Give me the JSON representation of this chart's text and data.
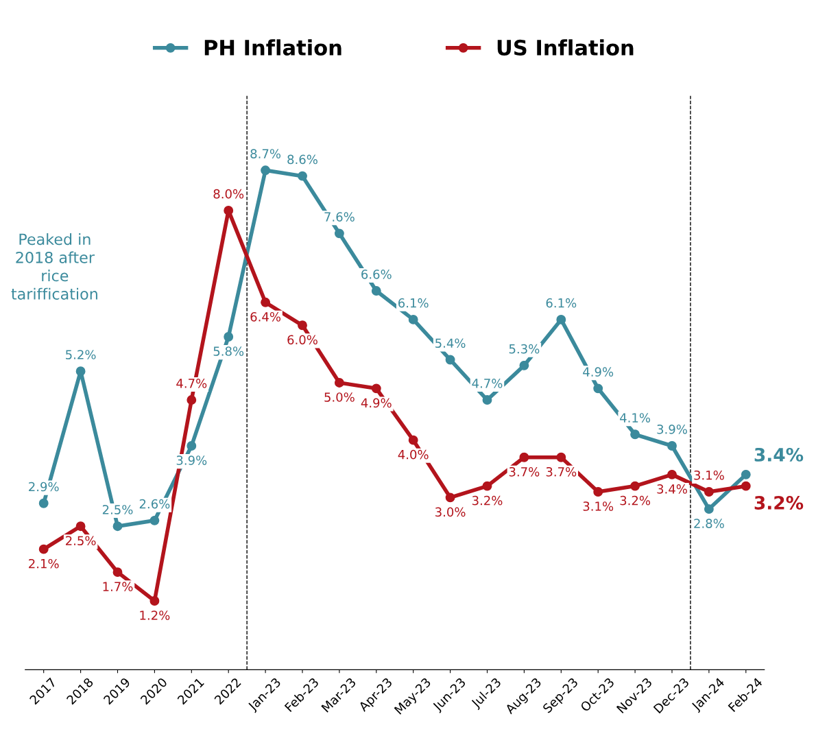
{
  "chart_data": {
    "type": "line",
    "categories": [
      "2017",
      "2018",
      "2019",
      "2020",
      "2021",
      "2022",
      "Jan-23",
      "Feb-23",
      "Mar-23",
      "Apr-23",
      "May-23",
      "Jun-23",
      "Jul-23",
      "Aug-23",
      "Sep-23",
      "Oct-23",
      "Nov-23",
      "Dec-23",
      "Jan-24",
      "Feb-24"
    ],
    "series": [
      {
        "name": "PH Inflation",
        "color": "#3b8a9c",
        "values": [
          2.9,
          5.2,
          2.5,
          2.6,
          3.9,
          5.8,
          8.7,
          8.6,
          7.6,
          6.6,
          6.1,
          5.4,
          4.7,
          5.3,
          6.1,
          4.9,
          4.1,
          3.9,
          2.8,
          3.4
        ],
        "value_labels": [
          "2.9%",
          "5.2%",
          "2.5%",
          "2.6%",
          "3.9%",
          "5.8%",
          "8.7%",
          "8.6%",
          "7.6%",
          "6.6%",
          "6.1%",
          "5.4%",
          "4.7%",
          "5.3%",
          "6.1%",
          "4.9%",
          "4.1%",
          "3.9%",
          "2.8%",
          "3.4%"
        ]
      },
      {
        "name": "US Inflation",
        "color": "#b3141c",
        "values": [
          2.1,
          2.5,
          1.7,
          1.2,
          4.7,
          8.0,
          6.4,
          6.0,
          5.0,
          4.9,
          4.0,
          3.0,
          3.2,
          3.7,
          3.7,
          3.1,
          3.2,
          3.4,
          3.1,
          3.2
        ],
        "value_labels": [
          "2.1%",
          "2.5%",
          "1.7%",
          "1.2%",
          "4.7%",
          "8.0%",
          "6.4%",
          "6.0%",
          "5.0%",
          "4.9%",
          "4.0%",
          "3.0%",
          "3.2%",
          "3.7%",
          "3.7%",
          "3.1%",
          "3.2%",
          "3.4%",
          "3.1%",
          "3.2%"
        ]
      }
    ],
    "ylim": [
      0,
      10
    ],
    "tick_labels": "x",
    "grid": false,
    "legend": "top",
    "marker": "circle",
    "line_style": "solid",
    "annotations": [
      "Peaked in\n2018 after\nrice\ntariffication"
    ]
  }
}
